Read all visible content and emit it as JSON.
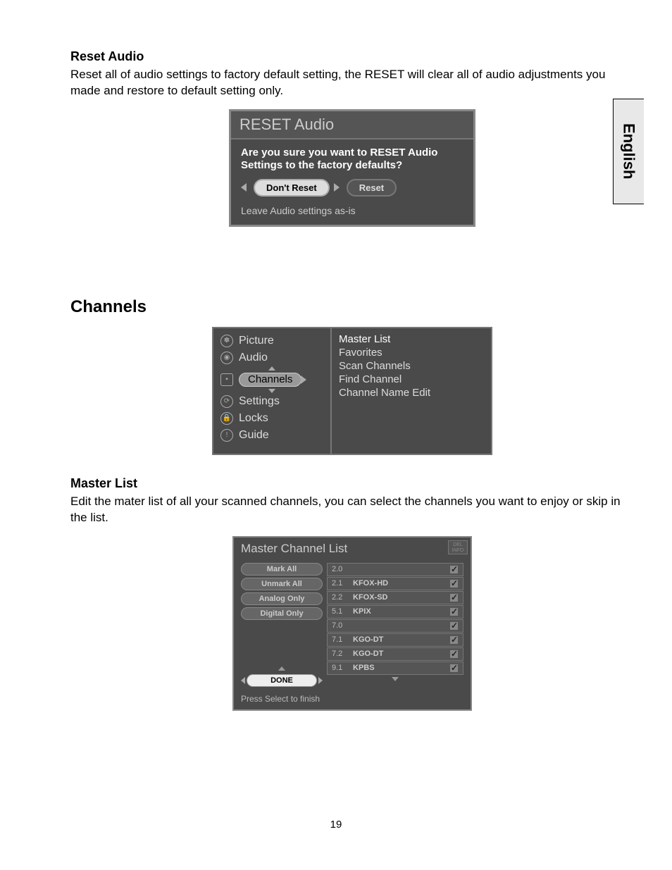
{
  "lang_tab": "English",
  "page_number": "19",
  "reset_audio": {
    "title": "Reset Audio",
    "desc": "Reset all of audio settings to factory default setting, the RESET will clear all of audio adjustments you made and restore to default setting only.",
    "dialog_title": "RESET Audio",
    "question": "Are you sure you want to RESET Audio Settings to the factory defaults?",
    "btn_dont": "Don't Reset",
    "btn_reset": "Reset",
    "hint": "Leave Audio settings as-is"
  },
  "channels": {
    "heading": "Channels",
    "menu_left": {
      "picture": "Picture",
      "audio": "Audio",
      "channels": "Channels",
      "settings": "Settings",
      "locks": "Locks",
      "guide": "Guide"
    },
    "menu_right": {
      "master_list": "Master List",
      "favorites": "Favorites",
      "scan": "Scan Channels",
      "find": "Find Channel",
      "edit": "Channel Name Edit"
    }
  },
  "master_list": {
    "title": "Master List",
    "desc": "Edit the mater list of all your scanned channels, you can select the channels you want to enjoy or skip in the list.",
    "dialog_title": "Master Channel List",
    "btn_mark_all": "Mark All",
    "btn_unmark_all": "Unmark All",
    "btn_analog": "Analog Only",
    "btn_digital": "Digital Only",
    "btn_done": "DONE",
    "rows": [
      {
        "num": "2.0",
        "name": ""
      },
      {
        "num": "2.1",
        "name": "KFOX-HD"
      },
      {
        "num": "2.2",
        "name": "KFOX-SD"
      },
      {
        "num": "5.1",
        "name": "KPIX"
      },
      {
        "num": "7.0",
        "name": ""
      },
      {
        "num": "7.1",
        "name": "KGO-DT"
      },
      {
        "num": "7.2",
        "name": "KGO-DT"
      },
      {
        "num": "9.1",
        "name": "KPBS"
      }
    ],
    "footer": "Press Select to finish"
  }
}
